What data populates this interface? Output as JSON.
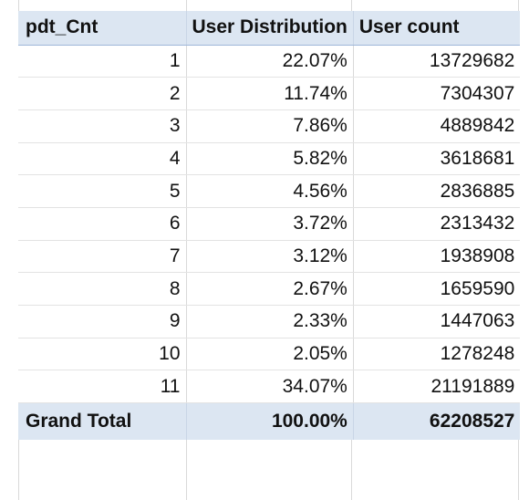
{
  "table": {
    "headers": [
      "pdt_Cnt",
      "User Distribution",
      "User count"
    ],
    "rows": [
      {
        "pdt_cnt": "1",
        "distribution": "22.07%",
        "count": "13729682"
      },
      {
        "pdt_cnt": "2",
        "distribution": "11.74%",
        "count": "7304307"
      },
      {
        "pdt_cnt": "3",
        "distribution": "7.86%",
        "count": "4889842"
      },
      {
        "pdt_cnt": "4",
        "distribution": "5.82%",
        "count": "3618681"
      },
      {
        "pdt_cnt": "5",
        "distribution": "4.56%",
        "count": "2836885"
      },
      {
        "pdt_cnt": "6",
        "distribution": "3.72%",
        "count": "2313432"
      },
      {
        "pdt_cnt": "7",
        "distribution": "3.12%",
        "count": "1938908"
      },
      {
        "pdt_cnt": "8",
        "distribution": "2.67%",
        "count": "1659590"
      },
      {
        "pdt_cnt": "9",
        "distribution": "2.33%",
        "count": "1447063"
      },
      {
        "pdt_cnt": "10",
        "distribution": "2.05%",
        "count": "1278248"
      },
      {
        "pdt_cnt": "11",
        "distribution": "34.07%",
        "count": "21191889"
      }
    ],
    "total": {
      "label": "Grand Total",
      "distribution": "100.00%",
      "count": "62208527"
    }
  },
  "colors": {
    "header_bg": "#dce6f2",
    "header_border": "#9fb7d9",
    "grid": "#d9d9d9"
  }
}
